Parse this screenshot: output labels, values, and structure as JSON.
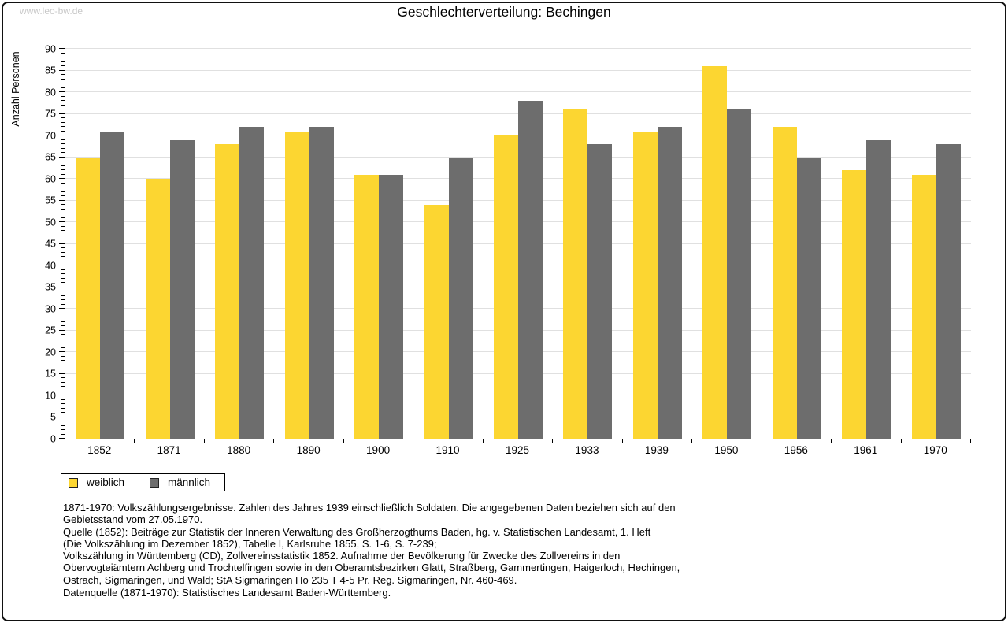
{
  "watermark": "www.leo-bw.de",
  "chart_data": {
    "type": "bar",
    "title": "Geschlechterverteilung: Bechingen",
    "categories": [
      "1852",
      "1871",
      "1880",
      "1890",
      "1900",
      "1910",
      "1925",
      "1933",
      "1939",
      "1950",
      "1956",
      "1961",
      "1970"
    ],
    "series": [
      {
        "name": "weiblich",
        "color": "#fcd631",
        "values": [
          65,
          60,
          68,
          71,
          61,
          54,
          70,
          76,
          71,
          86,
          72,
          62,
          61
        ]
      },
      {
        "name": "männlich",
        "color": "#6d6d6d",
        "values": [
          71,
          69,
          72,
          72,
          61,
          65,
          78,
          68,
          72,
          76,
          65,
          69,
          68
        ]
      }
    ],
    "xlabel": "",
    "ylabel": "Anzahl Personen",
    "ylim": [
      0,
      90
    ],
    "ytick_step": 5,
    "minor_tick_step": 1,
    "grid": true,
    "gridline_color": "#e0e0e0",
    "legend_position": "bottom-left"
  },
  "legend": {
    "items": [
      {
        "label": "weiblich",
        "color": "#fcd631"
      },
      {
        "label": "männlich",
        "color": "#6d6d6d"
      }
    ]
  },
  "footnotes": {
    "paragraph_lines": [
      "1871-1970: Volkszählungsergebnisse. Zahlen des Jahres 1939 einschließlich Soldaten. Die angegebenen Daten beziehen sich auf den",
      "Gebietsstand vom 27.05.1970.",
      "Quelle (1852): Beiträge zur Statistik der Inneren Verwaltung des Großherzogthums Baden, hg. v. Statistischen Landesamt, 1. Heft",
      "(Die Volkszählung im Dezember 1852), Tabelle I, Karlsruhe 1855, S. 1-6, S. 7-239;",
      "Volkszählung in Württemberg (CD), Zollvereinsstatistik 1852. Aufnahme der Bevölkerung für Zwecke des Zollvereins in den",
      "Obervogteiämtern Achberg und Trochtelfingen sowie in den Oberamtsbezirken Glatt, Straßberg, Gammertingen, Haigerloch, Hechingen,",
      "Ostrach, Sigmaringen, und Wald; StA Sigmaringen Ho 235 T 4-5 Pr. Reg. Sigmaringen, Nr. 460-469."
    ],
    "datasource": "Datenquelle (1871-1970): Statistisches Landesamt Baden-Württemberg."
  }
}
